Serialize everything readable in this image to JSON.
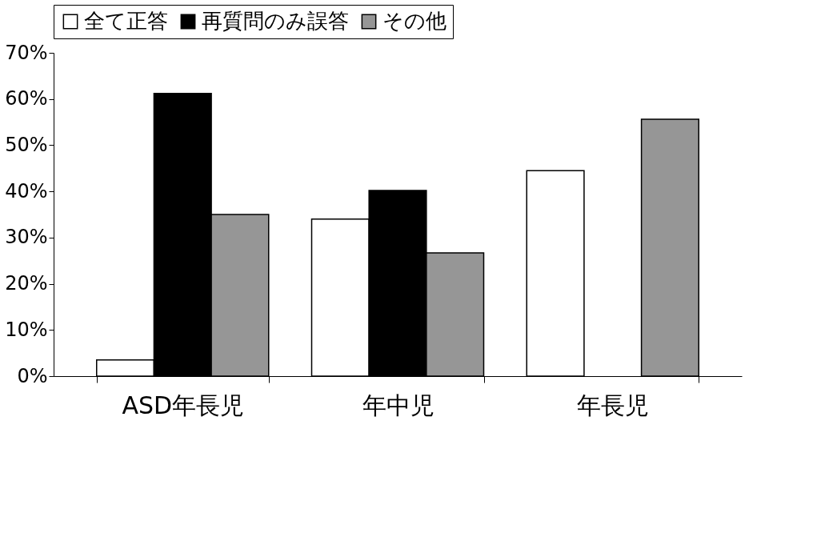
{
  "chart_data": {
    "type": "bar",
    "categories": [
      "ASD年長児",
      "年中児",
      "年長児"
    ],
    "series": [
      {
        "name": "全て正答",
        "color": "#ffffff",
        "values": [
          3.5,
          34.0,
          44.5
        ]
      },
      {
        "name": "再質問のみ誤答",
        "color": "#000000",
        "values": [
          61.2,
          40.2,
          null
        ]
      },
      {
        "name": "その他",
        "color": "#969696",
        "values": [
          35.0,
          26.7,
          55.6
        ]
      }
    ],
    "ylim": [
      0,
      70
    ],
    "yticks": [
      {
        "value": 0,
        "label": "0%"
      },
      {
        "value": 10,
        "label": "10%"
      },
      {
        "value": 20,
        "label": "20%"
      },
      {
        "value": 30,
        "label": "30%"
      },
      {
        "value": 40,
        "label": "40%"
      },
      {
        "value": 50,
        "label": "50%"
      },
      {
        "value": 60,
        "label": "60%"
      },
      {
        "value": 70,
        "label": "70%"
      }
    ],
    "grid": false,
    "legend": "top"
  }
}
